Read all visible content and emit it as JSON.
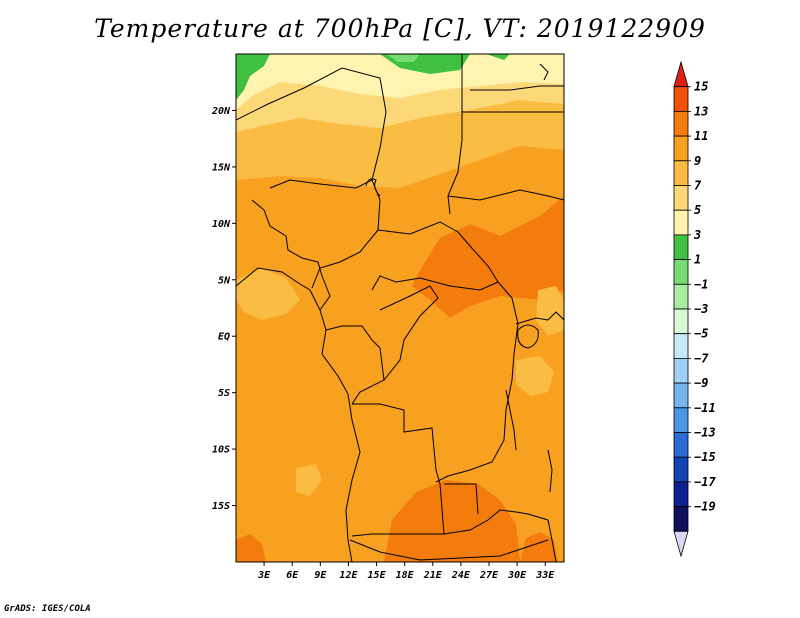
{
  "title": "Temperature at 700hPa [C], VT: 2019122909",
  "credit": "GrADS: IGES/COLA",
  "map": {
    "lon_range": [
      0,
      35
    ],
    "lat_range": [
      -20,
      25
    ],
    "lat_ticks": [
      {
        "value": 20,
        "label": "20N"
      },
      {
        "value": 15,
        "label": "15N"
      },
      {
        "value": 10,
        "label": "10N"
      },
      {
        "value": 5,
        "label": "5N"
      },
      {
        "value": 0,
        "label": "EQ"
      },
      {
        "value": -5,
        "label": "5S"
      },
      {
        "value": -10,
        "label": "10S"
      },
      {
        "value": -15,
        "label": "15S"
      }
    ],
    "lon_ticks": [
      {
        "value": 3,
        "label": "3E"
      },
      {
        "value": 6,
        "label": "6E"
      },
      {
        "value": 9,
        "label": "9E"
      },
      {
        "value": 12,
        "label": "12E"
      },
      {
        "value": 15,
        "label": "15E"
      },
      {
        "value": 18,
        "label": "18E"
      },
      {
        "value": 21,
        "label": "21E"
      },
      {
        "value": 24,
        "label": "24E"
      },
      {
        "value": 27,
        "label": "27E"
      },
      {
        "value": 30,
        "label": "30E"
      },
      {
        "value": 33,
        "label": "33E"
      }
    ]
  },
  "colorbar": {
    "labels": [
      "15",
      "13",
      "11",
      "9",
      "7",
      "5",
      "3",
      "1",
      "−1",
      "−3",
      "−5",
      "−7",
      "−9",
      "−11",
      "−13",
      "−15",
      "−17",
      "−19"
    ],
    "colors": [
      "#e02010",
      "#f05008",
      "#f47c0c",
      "#f8a020",
      "#fbbc44",
      "#fdd878",
      "#fef4b0",
      "#40c040",
      "#78dc70",
      "#a8eca0",
      "#d8f8d8",
      "#c8e8f8",
      "#a0d0f4",
      "#78b4ec",
      "#4c94e4",
      "#2c6cd8",
      "#1444b4",
      "#0c2090",
      "#101060",
      "#d8d8f4"
    ]
  },
  "field": {
    "base_color": "#f8a020",
    "colors": {
      "c11": "#f47c0c",
      "c9": "#f8a020",
      "c7": "#fbbc44",
      "c5": "#fdd878",
      "c3": "#fef4b0",
      "c1": "#40c040",
      "cm1": "#78dc70"
    }
  }
}
